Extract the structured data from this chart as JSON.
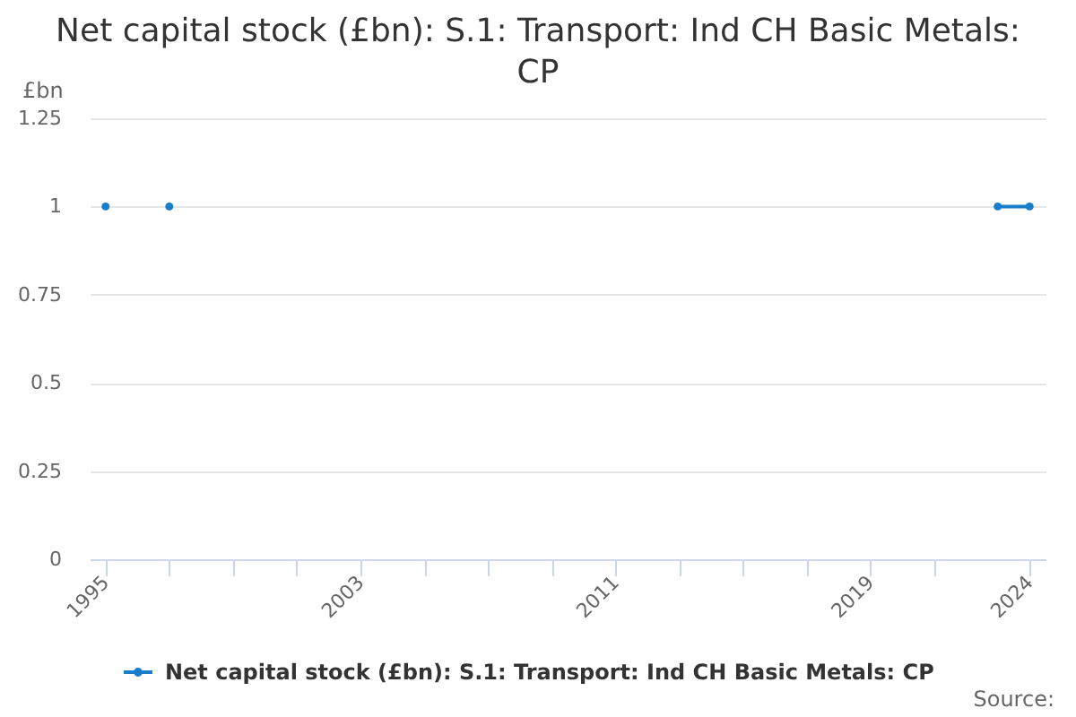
{
  "chart_data": {
    "type": "line",
    "title": "Net capital stock (£bn): S.1: Transport: Ind CH Basic Metals: CP",
    "ylabel": "£bn",
    "x": [
      1995,
      1996,
      1997,
      1998,
      1999,
      2000,
      2001,
      2002,
      2003,
      2004,
      2005,
      2006,
      2007,
      2008,
      2009,
      2010,
      2011,
      2012,
      2013,
      2014,
      2015,
      2016,
      2017,
      2018,
      2019,
      2020,
      2021,
      2022,
      2023,
      2024
    ],
    "series": [
      {
        "name": "Net capital stock (£bn): S.1: Transport: Ind CH Basic Metals: CP",
        "color": "#1a7dc9",
        "values": [
          1,
          null,
          1,
          null,
          null,
          null,
          null,
          null,
          null,
          null,
          null,
          null,
          null,
          null,
          null,
          null,
          null,
          null,
          null,
          null,
          null,
          null,
          null,
          null,
          null,
          null,
          null,
          null,
          1,
          1
        ]
      }
    ],
    "xlim": [
      1994.5,
      2024.5
    ],
    "ylim": [
      0,
      1.25
    ],
    "xticks": [
      1995,
      {
        "value": 1997,
        "label": null
      },
      {
        "value": 1999,
        "label": null
      },
      {
        "value": 2001,
        "label": null
      },
      2003,
      {
        "value": 2005,
        "label": null
      },
      {
        "value": 2007,
        "label": null
      },
      {
        "value": 2009,
        "label": null
      },
      2011,
      {
        "value": 2013,
        "label": null
      },
      {
        "value": 2015,
        "label": null
      },
      {
        "value": 2017,
        "label": null
      },
      2019,
      {
        "value": 2021,
        "label": null
      },
      2024
    ],
    "yticks": [
      0,
      0.25,
      0.5,
      0.75,
      1,
      1.25
    ],
    "grid": "y",
    "legend": "bottom",
    "marker": "circle",
    "line_style": "solid",
    "annotations": [
      "Source:"
    ]
  }
}
